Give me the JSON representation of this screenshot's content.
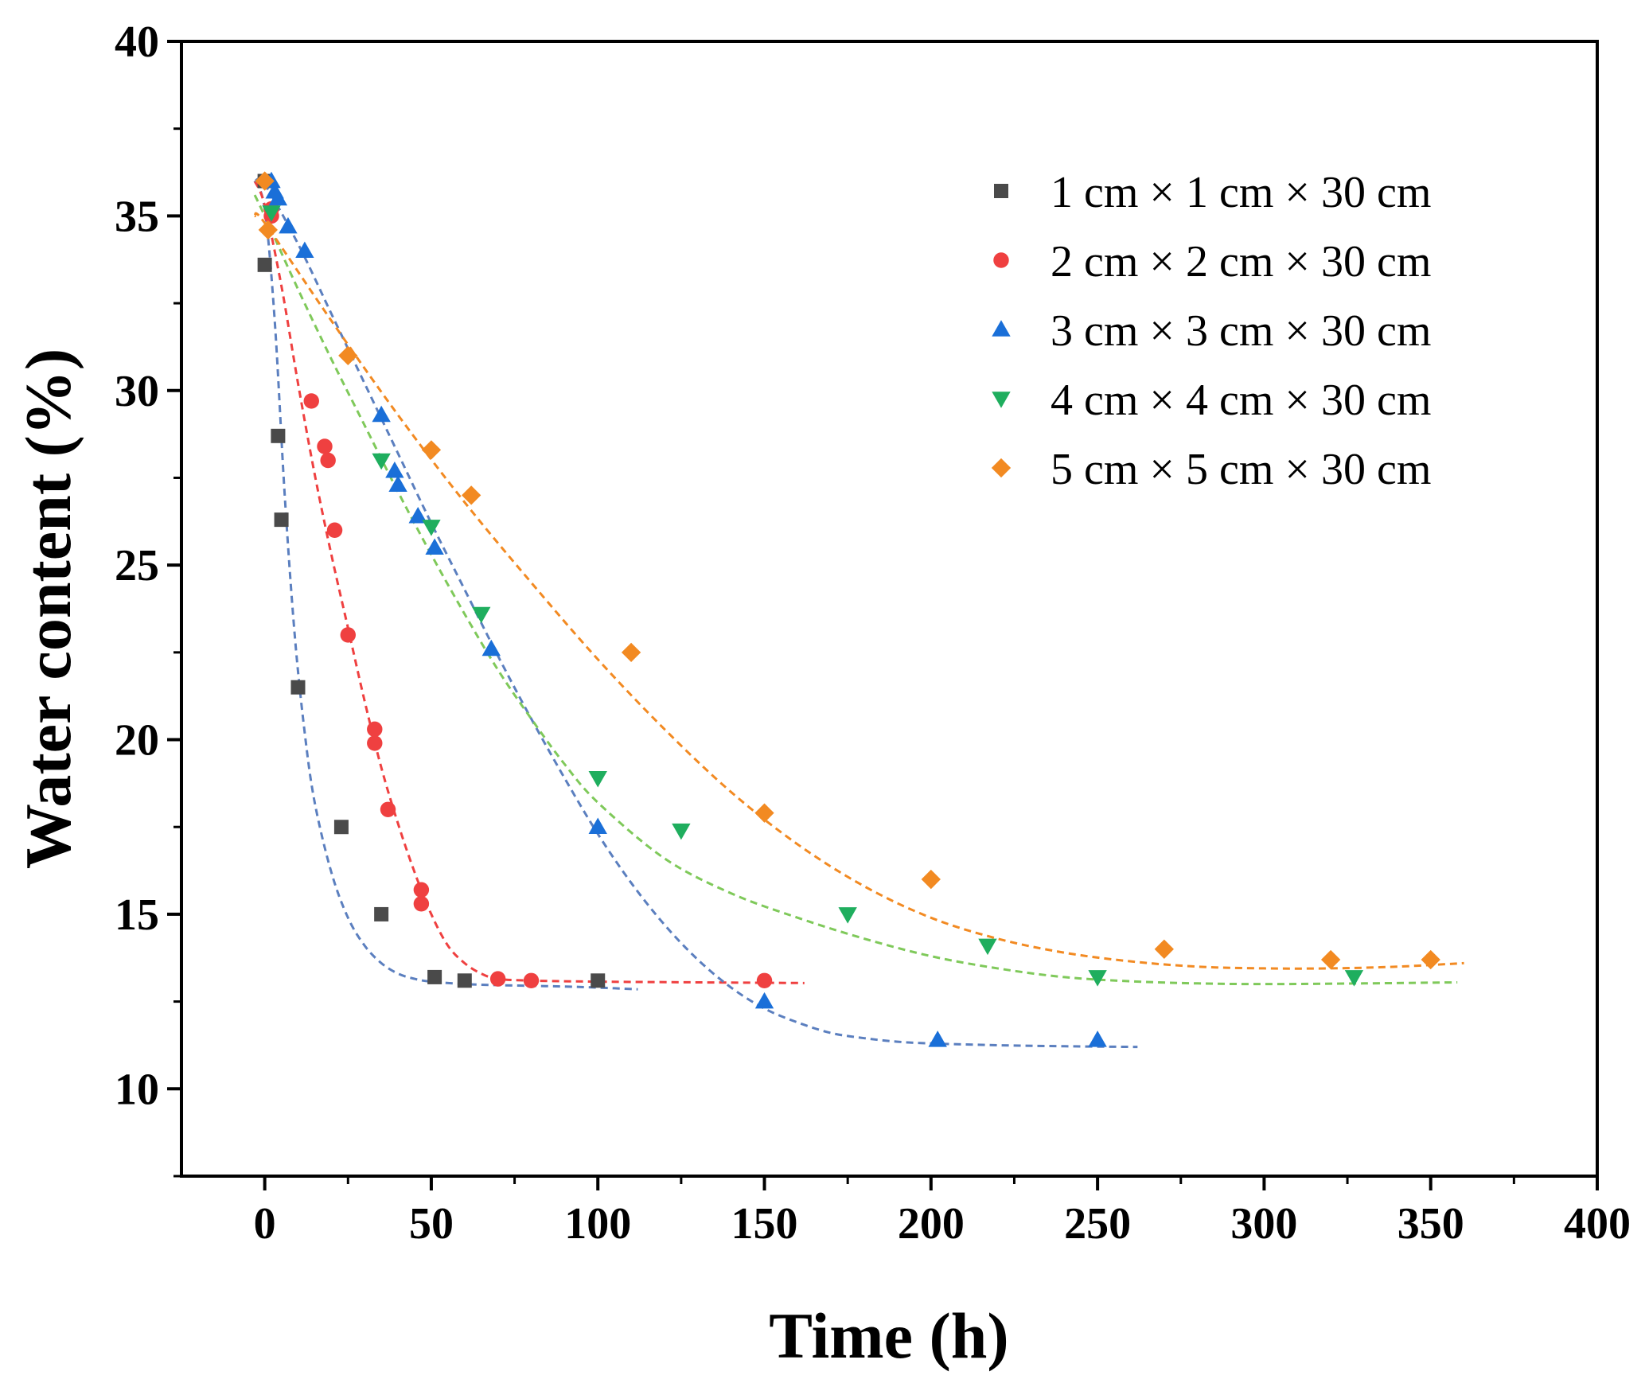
{
  "chart_data": {
    "type": "scatter",
    "title": "",
    "xlabel": "Time (h)",
    "ylabel": "Water content (%)",
    "xlim": [
      -25,
      400
    ],
    "ylim": [
      7.5,
      40
    ],
    "xticks": [
      0,
      50,
      100,
      150,
      200,
      250,
      300,
      350,
      400
    ],
    "yticks": [
      10,
      15,
      20,
      25,
      30,
      35,
      40
    ],
    "xtick_labels": [
      "0",
      "50",
      "100",
      "150",
      "200",
      "250",
      "300",
      "350",
      "400"
    ],
    "ytick_labels": [
      "10",
      "15",
      "20",
      "25",
      "30",
      "35",
      "40"
    ],
    "grid": false,
    "legend_position": "top-right",
    "series": [
      {
        "name": "1 cm × 1 cm × 30 cm",
        "marker": "square",
        "color": "#4a4a4a",
        "fit_color": "#5b7fbf",
        "x": [
          0,
          0,
          4,
          5,
          10,
          23,
          35,
          51,
          60,
          100
        ],
        "y": [
          36.0,
          33.6,
          28.7,
          26.3,
          21.5,
          17.5,
          15.0,
          13.2,
          13.1,
          13.1
        ],
        "fit_x": [
          -3,
          0,
          3,
          6,
          9,
          12,
          15,
          20,
          25,
          30,
          35,
          40,
          45,
          50,
          60,
          70,
          80,
          90,
          100,
          112
        ],
        "fit_y": [
          36.0,
          35.2,
          32.0,
          27.0,
          23.0,
          20.2,
          18.2,
          16.2,
          14.9,
          14.1,
          13.6,
          13.3,
          13.15,
          13.07,
          13.0,
          12.97,
          12.95,
          12.93,
          12.9,
          12.85
        ]
      },
      {
        "name": "2 cm × 2 cm × 30 cm",
        "marker": "circle",
        "color": "#ef4040",
        "fit_color": "#ef4040",
        "x": [
          2,
          2,
          14,
          18,
          19,
          21,
          25,
          33,
          33,
          37,
          47,
          47,
          70,
          80,
          150
        ],
        "y": [
          35.2,
          35.0,
          29.7,
          28.4,
          28.0,
          26.0,
          23.0,
          20.3,
          19.9,
          18.0,
          15.7,
          15.3,
          13.15,
          13.1,
          13.1
        ],
        "fit_x": [
          -3,
          0,
          5,
          10,
          15,
          20,
          25,
          30,
          35,
          40,
          45,
          50,
          55,
          60,
          65,
          70,
          80,
          100,
          130,
          162
        ],
        "fit_y": [
          36.0,
          35.3,
          33.0,
          30.2,
          27.6,
          25.3,
          23.2,
          21.1,
          19.2,
          17.6,
          16.2,
          15.0,
          14.1,
          13.6,
          13.3,
          13.15,
          13.1,
          13.07,
          13.05,
          13.03
        ]
      },
      {
        "name": "3 cm × 3 cm × 30 cm",
        "marker": "triangle-up",
        "color": "#1a6fd8",
        "fit_color": "#5b7fbf",
        "x": [
          2,
          3,
          4,
          7,
          12,
          35,
          39,
          40,
          46,
          51,
          68,
          100,
          150,
          202,
          250
        ],
        "y": [
          36.0,
          35.7,
          35.5,
          34.7,
          34.0,
          29.3,
          27.7,
          27.3,
          26.4,
          25.5,
          22.6,
          17.5,
          12.5,
          11.4,
          11.4
        ],
        "fit_x": [
          -3,
          0,
          10,
          20,
          30,
          40,
          50,
          60,
          70,
          80,
          90,
          100,
          110,
          120,
          130,
          140,
          150,
          160,
          170,
          180,
          190,
          200,
          220,
          240,
          262
        ],
        "fit_y": [
          36.0,
          35.9,
          34.2,
          32.2,
          30.2,
          28.2,
          26.2,
          24.3,
          22.4,
          20.6,
          18.9,
          17.3,
          15.9,
          14.7,
          13.7,
          12.9,
          12.3,
          11.9,
          11.6,
          11.45,
          11.35,
          11.3,
          11.25,
          11.22,
          11.2
        ]
      },
      {
        "name": "4 cm × 4 cm × 30 cm",
        "marker": "triangle-down",
        "color": "#1fae5e",
        "fit_color": "#7fc95a",
        "x": [
          2,
          35,
          50,
          65,
          100,
          125,
          175,
          217,
          250,
          327
        ],
        "y": [
          35.1,
          28.0,
          26.1,
          23.6,
          18.9,
          17.4,
          15.0,
          14.1,
          13.2,
          13.2
        ],
        "fit_x": [
          -3,
          0,
          10,
          20,
          30,
          40,
          50,
          60,
          70,
          80,
          90,
          100,
          120,
          140,
          160,
          180,
          200,
          220,
          240,
          260,
          280,
          300,
          330,
          358
        ],
        "fit_y": [
          35.6,
          35.0,
          32.9,
          30.9,
          29.0,
          27.1,
          25.3,
          23.6,
          22.0,
          20.6,
          19.3,
          18.2,
          16.6,
          15.6,
          14.9,
          14.3,
          13.8,
          13.45,
          13.2,
          13.08,
          13.02,
          13.0,
          13.02,
          13.05
        ]
      },
      {
        "name": "5 cm × 5 cm × 30 cm",
        "marker": "diamond",
        "color": "#f28a22",
        "fit_color": "#f28a22",
        "x": [
          0,
          1,
          25,
          50,
          62,
          110,
          150,
          200,
          270,
          320,
          350
        ],
        "y": [
          36.0,
          34.6,
          31.0,
          28.3,
          27.0,
          22.5,
          17.9,
          16.0,
          14.0,
          13.7,
          13.7
        ],
        "fit_x": [
          -3,
          0,
          20,
          40,
          60,
          80,
          100,
          120,
          140,
          160,
          180,
          200,
          220,
          240,
          260,
          280,
          300,
          320,
          340,
          360
        ],
        "fit_y": [
          35.0,
          34.8,
          32.0,
          29.3,
          26.8,
          24.5,
          22.3,
          20.3,
          18.5,
          17.0,
          15.8,
          14.9,
          14.3,
          13.9,
          13.65,
          13.5,
          13.45,
          13.45,
          13.5,
          13.6
        ]
      }
    ]
  }
}
